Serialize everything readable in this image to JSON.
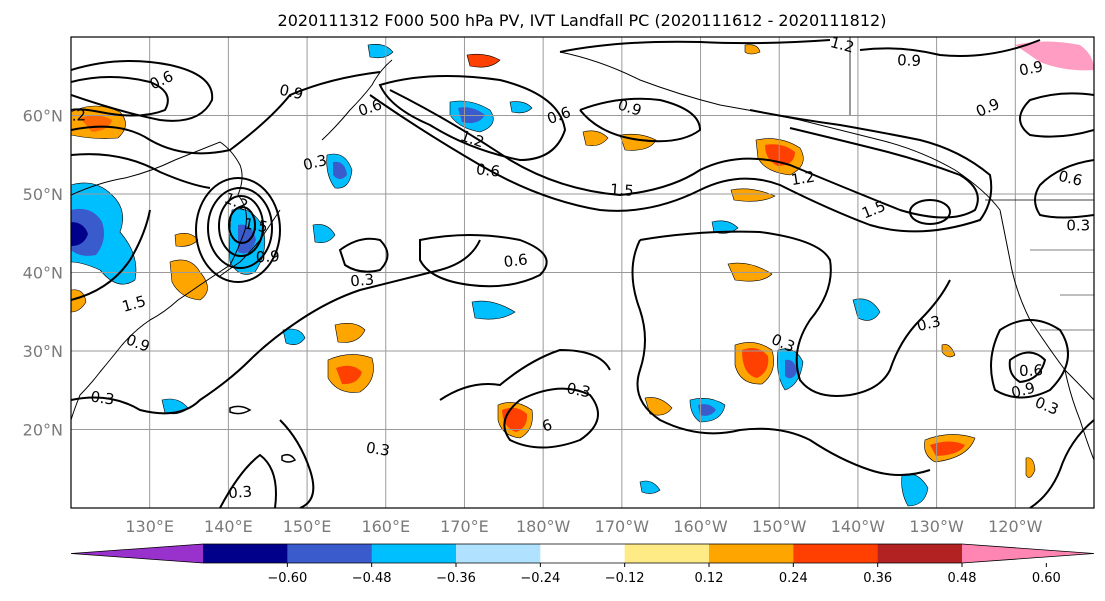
{
  "title": "2020111312 F000 500 hPa PV, IVT Landfall PC (2020111612 - 2020111812)",
  "map": {
    "lat_range": [
      10,
      70
    ],
    "lon_range_east": [
      120,
      250
    ],
    "lat_ticks": [
      {
        "lat": 60,
        "label": "60°N"
      },
      {
        "lat": 50,
        "label": "50°N"
      },
      {
        "lat": 40,
        "label": "40°N"
      },
      {
        "lat": 30,
        "label": "30°N"
      },
      {
        "lat": 20,
        "label": "20°N"
      }
    ],
    "lon_ticks": [
      {
        "lon": 130,
        "label": "130°E"
      },
      {
        "lon": 140,
        "label": "140°E"
      },
      {
        "lon": 150,
        "label": "150°E"
      },
      {
        "lon": 160,
        "label": "160°E"
      },
      {
        "lon": 170,
        "label": "170°E"
      },
      {
        "lon": 180,
        "label": "180°W"
      },
      {
        "lon": 190,
        "label": "170°W"
      },
      {
        "lon": 200,
        "label": "160°W"
      },
      {
        "lon": 210,
        "label": "150°W"
      },
      {
        "lon": 220,
        "label": "140°W"
      },
      {
        "lon": 230,
        "label": "130°W"
      },
      {
        "lon": 240,
        "label": "120°W"
      }
    ],
    "grid": true
  },
  "colorbar": {
    "colors": [
      "#9932cc",
      "#00008b",
      "#3a5bcc",
      "#00bfff",
      "#b0e2ff",
      "#ffffff",
      "#ffeb85",
      "#ffa500",
      "#ff4000",
      "#b22222",
      "#ff85b3"
    ],
    "tick_labels": [
      "−0.60",
      "−0.48",
      "−0.36",
      "−0.24",
      "−0.12",
      "0.12",
      "0.24",
      "0.36",
      "0.48",
      "0.60"
    ],
    "extend": "both"
  },
  "pv_contour_labels": [
    {
      "text": "0.6",
      "lon": 131.5,
      "lat": 64.5
    },
    {
      "text": "0.9",
      "lon": 148,
      "lat": 63
    },
    {
      "text": ".2",
      "lon": 121,
      "lat": 60
    },
    {
      "text": "0.3",
      "lon": 151,
      "lat": 54
    },
    {
      "text": "1.2",
      "lon": 141,
      "lat": 49
    },
    {
      "text": "1.5",
      "lon": 143.5,
      "lat": 46
    },
    {
      "text": "0.9",
      "lon": 145,
      "lat": 42
    },
    {
      "text": "1.5",
      "lon": 128,
      "lat": 36
    },
    {
      "text": "0.9",
      "lon": 128.5,
      "lat": 31
    },
    {
      "text": "0.3",
      "lon": 124,
      "lat": 24
    },
    {
      "text": "0.3",
      "lon": 157,
      "lat": 39
    },
    {
      "text": "0.6",
      "lon": 158,
      "lat": 61
    },
    {
      "text": "1.2",
      "lon": 171,
      "lat": 57
    },
    {
      "text": "0.6",
      "lon": 173,
      "lat": 53
    },
    {
      "text": "0.6",
      "lon": 176.5,
      "lat": 41.5
    },
    {
      "text": "0.6",
      "lon": 182,
      "lat": 60
    },
    {
      "text": "0.9",
      "lon": 191,
      "lat": 61
    },
    {
      "text": "1.5",
      "lon": 190,
      "lat": 50.5
    },
    {
      "text": "1.2",
      "lon": 213,
      "lat": 52
    },
    {
      "text": "1.5",
      "lon": 222,
      "lat": 48
    },
    {
      "text": "1.2",
      "lon": 218,
      "lat": 69
    },
    {
      "text": "0.9",
      "lon": 226.5,
      "lat": 67
    },
    {
      "text": "0.9",
      "lon": 242,
      "lat": 66
    },
    {
      "text": "0.9",
      "lon": 236.5,
      "lat": 61
    },
    {
      "text": "0.6",
      "lon": 247,
      "lat": 52
    },
    {
      "text": "0.3",
      "lon": 248,
      "lat": 46
    },
    {
      "text": "0.3",
      "lon": 229,
      "lat": 33.5
    },
    {
      "text": "0.3",
      "lon": 210.5,
      "lat": 31
    },
    {
      "text": "0.3",
      "lon": 184.5,
      "lat": 25
    },
    {
      "text": "0.6",
      "lon": 242,
      "lat": 27.5
    },
    {
      "text": "0.9",
      "lon": 241,
      "lat": 25
    },
    {
      "text": "0.3",
      "lon": 244,
      "lat": 23
    },
    {
      "text": "0.3",
      "lon": 159,
      "lat": 17.5
    },
    {
      "text": "0.3",
      "lon": 141.5,
      "lat": 12
    },
    {
      "text": "6",
      "lon": 180.5,
      "lat": 20.5
    }
  ]
}
